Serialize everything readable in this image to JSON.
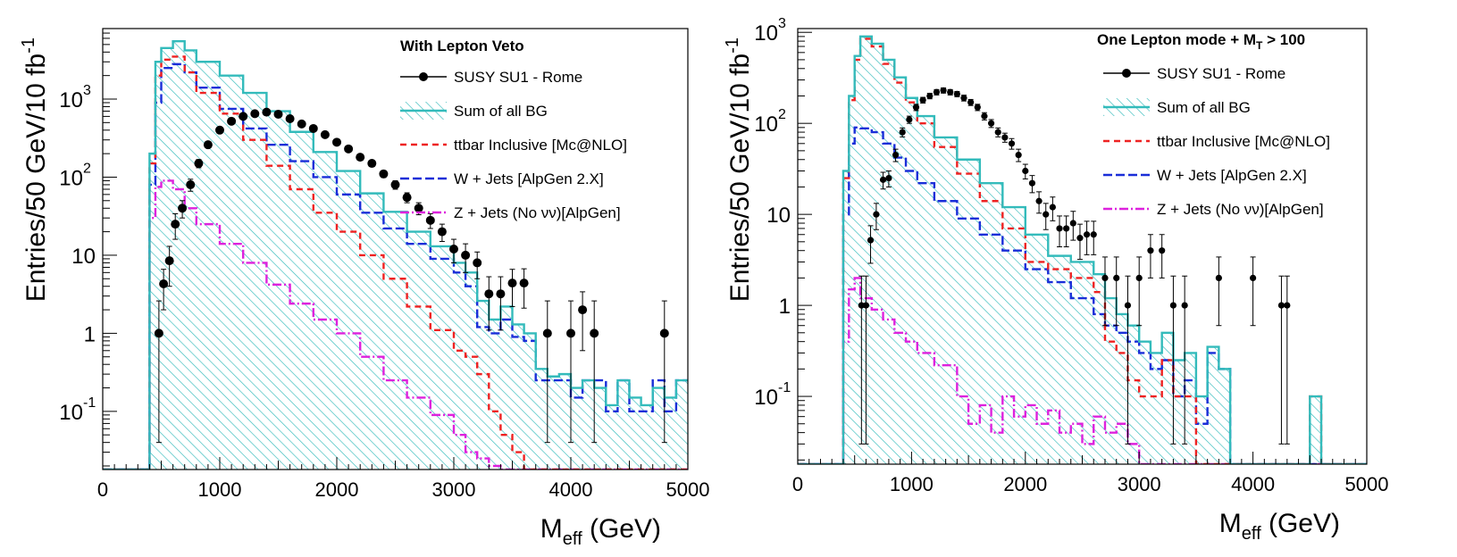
{
  "chart_data": [
    {
      "type": "line",
      "scale": "log-y",
      "title": "With Lepton Veto",
      "xlabel": "M",
      "xlabel_sub": "eff",
      "xlabel_unit": " (GeV)",
      "ylabel": "Entries/50 GeV/10 fb",
      "ylabel_sup": "-1",
      "xlim": [
        0,
        5000
      ],
      "ylim": [
        0.018,
        8000
      ],
      "xticks": [
        0,
        1000,
        2000,
        3000,
        4000,
        5000
      ],
      "yticks": [
        {
          "value": 0.1,
          "base": "10",
          "exp": "-1"
        },
        {
          "value": 1,
          "base": "1",
          "exp": ""
        },
        {
          "value": 10,
          "base": "10",
          "exp": ""
        },
        {
          "value": 100,
          "base": "10",
          "exp": "2"
        },
        {
          "value": 1000,
          "base": "10",
          "exp": "3"
        }
      ],
      "colors": {
        "sum": "#33bbbb",
        "ttbar": "#ee2222",
        "wjets": "#1a2ed8",
        "zjets": "#dd22dd",
        "susy": "#000000"
      },
      "legend": [
        {
          "key": "susy",
          "label": "SUSY SU1 - Rome"
        },
        {
          "key": "sum",
          "label": "Sum of all BG"
        },
        {
          "key": "ttbar",
          "label": "ttbar Inclusive [Mc@NLO]"
        },
        {
          "key": "wjets",
          "label": "W + Jets [AlpGen 2.X]"
        },
        {
          "key": "zjets",
          "label": "Z + Jets (No νν)[AlpGen]"
        }
      ],
      "bin_width": 50,
      "series": [
        {
          "key": "sum",
          "edges": [
            0,
            400,
            450,
            500,
            600,
            700,
            800,
            1000,
            1200,
            1400,
            1600,
            1800,
            2000,
            2200,
            2400,
            2600,
            2800,
            3000,
            3100,
            3200,
            3300,
            3400,
            3500,
            3600,
            3700,
            3800,
            3900,
            4000,
            4100,
            4200,
            4300,
            4400,
            4500,
            4600,
            4700,
            4800,
            4900,
            5000
          ],
          "values": [
            0.018,
            200,
            3000,
            4500,
            5500,
            4200,
            3000,
            2000,
            1200,
            700,
            380,
            210,
            120,
            62,
            36,
            20,
            13,
            8,
            6,
            2.6,
            1.5,
            2.2,
            1.3,
            1,
            0.35,
            0.28,
            0.3,
            0.2,
            0.25,
            0.2,
            0.12,
            0.25,
            0.15,
            0.12,
            0.2,
            0.15,
            0.25
          ]
        },
        {
          "key": "ttbar",
          "edges": [
            0,
            400,
            450,
            500,
            600,
            700,
            800,
            1000,
            1200,
            1400,
            1600,
            1800,
            2000,
            2200,
            2400,
            2600,
            2800,
            3000,
            3100,
            3200,
            3300,
            3400,
            3500,
            3600,
            3700,
            3800,
            5000
          ],
          "values": [
            0.018,
            150,
            2000,
            3200,
            3500,
            2200,
            1200,
            650,
            300,
            140,
            70,
            35,
            20,
            10,
            5,
            2.2,
            1.1,
            0.6,
            0.5,
            0.3,
            0.1,
            0.05,
            0.03,
            0.018,
            0.018,
            0.018
          ]
        },
        {
          "key": "wjets",
          "edges": [
            0,
            400,
            450,
            500,
            600,
            700,
            800,
            1000,
            1200,
            1400,
            1600,
            1800,
            2000,
            2200,
            2400,
            2600,
            2800,
            3000,
            3100,
            3200,
            3300,
            3400,
            3500,
            3600,
            3700,
            3800,
            3900,
            4000,
            4100,
            4200,
            4300,
            4400,
            4500,
            4600,
            4700,
            4800,
            4900,
            5000
          ],
          "values": [
            0.018,
            80,
            900,
            2500,
            2800,
            2200,
            1400,
            750,
            420,
            260,
            160,
            100,
            60,
            35,
            22,
            14,
            9,
            6,
            4,
            1.2,
            1,
            1.5,
            0.9,
            0.8,
            0.25,
            0.25,
            0.25,
            0.15,
            0.25,
            0.25,
            0.1,
            0.25,
            0.1,
            0.1,
            0.25,
            0.1,
            0.25
          ]
        },
        {
          "key": "zjets",
          "edges": [
            0,
            400,
            450,
            500,
            600,
            700,
            800,
            1000,
            1200,
            1400,
            1600,
            1800,
            2000,
            2200,
            2400,
            2600,
            2800,
            3000,
            3100,
            3200,
            3300,
            3400,
            3500,
            3600,
            5000
          ],
          "values": [
            0.018,
            30,
            75,
            90,
            70,
            40,
            25,
            14,
            8,
            4.2,
            2.4,
            1.5,
            1,
            0.5,
            0.25,
            0.15,
            0.09,
            0.05,
            0.03,
            0.025,
            0.02,
            0.018,
            0.018,
            0.018
          ]
        }
      ],
      "points": {
        "x": [
          480,
          520,
          570,
          620,
          680,
          750,
          820,
          900,
          1000,
          1100,
          1200,
          1300,
          1400,
          1500,
          1600,
          1700,
          1800,
          1900,
          2000,
          2100,
          2200,
          2300,
          2400,
          2500,
          2600,
          2700,
          2800,
          2900,
          3000,
          3100,
          3200,
          3300,
          3400,
          3500,
          3600,
          3800,
          4000,
          4100,
          4200,
          4800
        ],
        "y": [
          1,
          4.3,
          8.5,
          25,
          40,
          80,
          150,
          260,
          400,
          520,
          600,
          650,
          680,
          640,
          560,
          480,
          420,
          350,
          280,
          230,
          180,
          150,
          110,
          80,
          55,
          40,
          28,
          20,
          12,
          10,
          8,
          3.2,
          3.2,
          4.4,
          4.4,
          1,
          1,
          2,
          1,
          1
        ],
        "err_lo": [
          0.96,
          2.3,
          4.5,
          9,
          10,
          14,
          18,
          22,
          25,
          27,
          28,
          28,
          28,
          27,
          26,
          24,
          22,
          20,
          18,
          16,
          14,
          13,
          11,
          10,
          8,
          7,
          6,
          5,
          4,
          4,
          3,
          2.1,
          2.1,
          2.2,
          2.3,
          0.96,
          0.96,
          1.4,
          0.96,
          0.96
        ],
        "err_hi": [
          1.6,
          2.3,
          4.5,
          9,
          10,
          14,
          18,
          22,
          25,
          27,
          28,
          28,
          28,
          27,
          26,
          24,
          22,
          20,
          18,
          16,
          14,
          13,
          11,
          10,
          8,
          7,
          6,
          5,
          4,
          4,
          3,
          2.1,
          2.1,
          2.2,
          2.3,
          1.6,
          1.6,
          1.4,
          1.6,
          1.6
        ]
      }
    },
    {
      "type": "line",
      "scale": "log-y",
      "title": "One Lepton mode + M",
      "title_sub": "T",
      "title_tail": " > 100",
      "xlabel": "M",
      "xlabel_sub": "eff",
      "xlabel_unit": " (GeV)",
      "ylabel": "Entries/50 GeV/10 fb",
      "ylabel_sup": "-1",
      "xlim": [
        0,
        5000
      ],
      "ylim": [
        0.018,
        1100
      ],
      "xticks": [
        0,
        1000,
        2000,
        3000,
        4000,
        5000
      ],
      "yticks": [
        {
          "value": 0.1,
          "base": "10",
          "exp": "-1"
        },
        {
          "value": 1,
          "base": "1",
          "exp": ""
        },
        {
          "value": 10,
          "base": "10",
          "exp": ""
        },
        {
          "value": 100,
          "base": "10",
          "exp": "2"
        },
        {
          "value": 1000,
          "base": "10",
          "exp": "3"
        }
      ],
      "colors": {
        "sum": "#33bbbb",
        "ttbar": "#ee2222",
        "wjets": "#1a2ed8",
        "zjets": "#dd22dd",
        "susy": "#000000"
      },
      "legend": [
        {
          "key": "susy",
          "label": "SUSY SU1 - Rome"
        },
        {
          "key": "sum",
          "label": "Sum of all BG"
        },
        {
          "key": "ttbar",
          "label": "ttbar Inclusive [Mc@NLO]"
        },
        {
          "key": "wjets",
          "label": "W + Jets [AlpGen 2.X]"
        },
        {
          "key": "zjets",
          "label": "Z + Jets (No νν)[AlpGen]"
        }
      ],
      "bin_width": 50,
      "series": [
        {
          "key": "sum",
          "edges": [
            0,
            400,
            450,
            500,
            550,
            650,
            750,
            850,
            950,
            1050,
            1200,
            1400,
            1600,
            1800,
            2000,
            2200,
            2400,
            2600,
            2700,
            2800,
            2900,
            3000,
            3100,
            3200,
            3300,
            3400,
            3500,
            3600,
            3700,
            3800,
            3900,
            4500,
            4600,
            5000
          ],
          "values": [
            0.018,
            30,
            200,
            550,
            900,
            750,
            500,
            320,
            190,
            120,
            70,
            40,
            22,
            12,
            6,
            3.5,
            3,
            2.2,
            1.2,
            0.8,
            0.6,
            0.4,
            0.3,
            0.5,
            0.25,
            0.3,
            0.1,
            0.35,
            0.2,
            0.018,
            0.018,
            0.1,
            0.018,
            0.018
          ]
        },
        {
          "key": "ttbar",
          "edges": [
            0,
            400,
            450,
            500,
            550,
            650,
            750,
            850,
            950,
            1050,
            1200,
            1400,
            1600,
            1800,
            2000,
            2200,
            2400,
            2600,
            2700,
            2800,
            2900,
            3000,
            3100,
            3200,
            3300,
            3400,
            3500,
            3600,
            3700,
            3800,
            3900,
            4500,
            4600,
            5000
          ],
          "values": [
            0.018,
            25,
            180,
            500,
            850,
            700,
            450,
            280,
            170,
            100,
            55,
            28,
            14,
            7,
            3,
            2.5,
            2,
            1.4,
            0.4,
            0.3,
            0.15,
            0.1,
            0.1,
            0.25,
            0.1,
            0.1,
            0.018,
            0.018,
            0.018,
            0.018,
            0.018,
            0.1,
            0.018,
            0.018
          ]
        },
        {
          "key": "wjets",
          "edges": [
            0,
            400,
            450,
            500,
            550,
            650,
            750,
            850,
            950,
            1050,
            1200,
            1400,
            1600,
            1800,
            2000,
            2200,
            2400,
            2600,
            2700,
            2800,
            2900,
            3000,
            3100,
            3200,
            3300,
            3400,
            3500,
            3600,
            3700,
            3800,
            5000
          ],
          "values": [
            0.018,
            10,
            60,
            90,
            88,
            80,
            60,
            42,
            30,
            22,
            14,
            9,
            6,
            4,
            2.5,
            1.8,
            1.2,
            0.8,
            0.6,
            0.5,
            0.4,
            0.3,
            0.2,
            0.25,
            0.1,
            0.15,
            0.05,
            0.3,
            0.2,
            0.018
          ]
        },
        {
          "key": "zjets",
          "edges": [
            0,
            400,
            450,
            500,
            550,
            650,
            750,
            850,
            950,
            1050,
            1200,
            1400,
            1500,
            1600,
            1700,
            1800,
            1900,
            2000,
            2100,
            2200,
            2300,
            2400,
            2500,
            2600,
            2700,
            2800,
            2900,
            3000,
            5000
          ],
          "values": [
            0.018,
            0.4,
            1.5,
            2,
            1.2,
            0.9,
            0.7,
            0.5,
            0.4,
            0.3,
            0.22,
            0.1,
            0.05,
            0.08,
            0.04,
            0.1,
            0.06,
            0.08,
            0.05,
            0.07,
            0.04,
            0.05,
            0.03,
            0.06,
            0.04,
            0.05,
            0.03,
            0.018,
            0.018
          ]
        }
      ],
      "points": {
        "x": [
          560,
          600,
          640,
          690,
          750,
          800,
          860,
          920,
          980,
          1040,
          1100,
          1160,
          1220,
          1280,
          1340,
          1400,
          1460,
          1520,
          1580,
          1640,
          1700,
          1760,
          1820,
          1880,
          1940,
          2000,
          2060,
          2120,
          2180,
          2240,
          2300,
          2360,
          2420,
          2480,
          2540,
          2600,
          2700,
          2800,
          2900,
          3000,
          3100,
          3200,
          3300,
          3400,
          3700,
          4000,
          4250,
          4300
        ],
        "y": [
          1,
          1,
          5.2,
          10,
          24,
          25,
          45,
          80,
          110,
          150,
          180,
          200,
          220,
          230,
          220,
          210,
          190,
          170,
          150,
          120,
          100,
          80,
          70,
          60,
          45,
          30,
          22,
          14,
          10,
          12,
          7,
          7,
          8,
          5.5,
          6,
          6,
          2,
          2,
          1,
          2,
          4,
          4,
          1,
          1,
          2,
          2,
          1,
          1
        ],
        "err_lo": [
          0.97,
          0.97,
          2.3,
          3.2,
          5,
          5,
          7,
          9,
          10,
          12,
          13,
          14,
          15,
          15,
          15,
          14,
          14,
          13,
          12,
          11,
          10,
          9,
          8,
          8,
          7,
          5.5,
          4.7,
          3.7,
          3.2,
          3.5,
          2.6,
          2.6,
          2.8,
          2.3,
          2.4,
          2.4,
          1.4,
          1.4,
          0.97,
          1.4,
          2,
          2,
          0.97,
          0.97,
          1.4,
          1.4,
          0.97,
          0.97
        ],
        "err_hi": [
          1.1,
          1.1,
          2.3,
          3.2,
          5,
          5,
          7,
          9,
          10,
          12,
          13,
          14,
          15,
          15,
          15,
          14,
          14,
          13,
          12,
          11,
          10,
          9,
          8,
          8,
          7,
          5.5,
          4.7,
          3.7,
          3.2,
          3.5,
          2.6,
          2.6,
          2.8,
          2.3,
          2.4,
          2.4,
          1.4,
          1.4,
          1.1,
          1.4,
          2,
          2,
          1.1,
          1.1,
          1.4,
          1.4,
          1.1,
          1.1
        ]
      }
    }
  ]
}
